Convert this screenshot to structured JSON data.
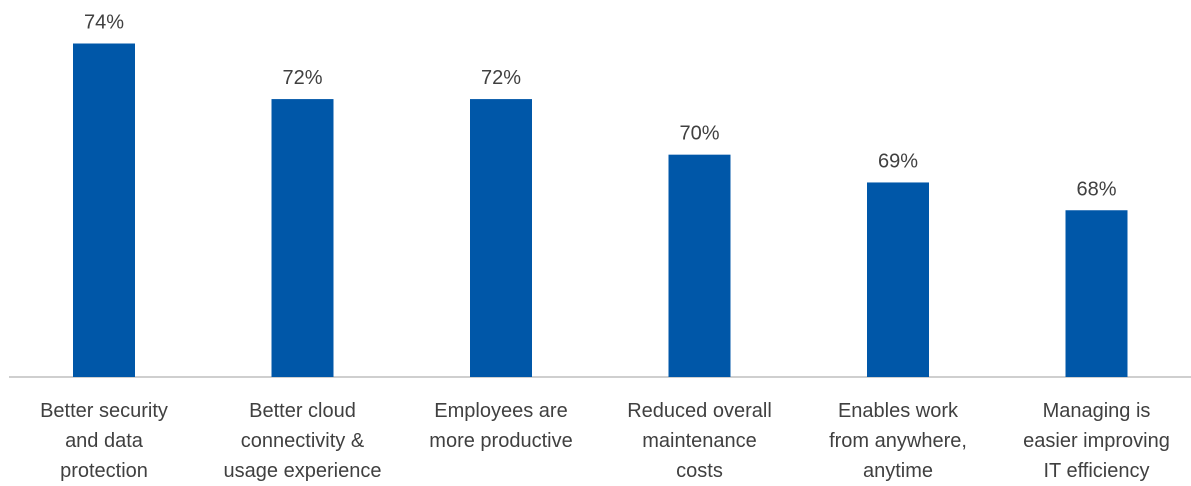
{
  "chart_data": {
    "type": "bar",
    "categories": [
      "Better security\nand data\nprotection",
      "Better cloud\nconnectivity &\nusage experience",
      "Employees are\nmore productive",
      "Reduced overall\nmaintenance\ncosts",
      "Enables work\nfrom anywhere,\nanytime",
      "Managing is\neasier improving\nIT efficiency"
    ],
    "values": [
      74,
      72,
      72,
      70,
      69,
      68
    ],
    "data_labels": [
      "74%",
      "72%",
      "72%",
      "70%",
      "69%",
      "68%"
    ],
    "title": "",
    "xlabel": "",
    "ylabel": "",
    "ylim": [
      62,
      75
    ],
    "grid": false,
    "legend": "none",
    "bar_color": "#0057A8",
    "axis_color": "#BFBFBF",
    "text_color": "#404040"
  }
}
